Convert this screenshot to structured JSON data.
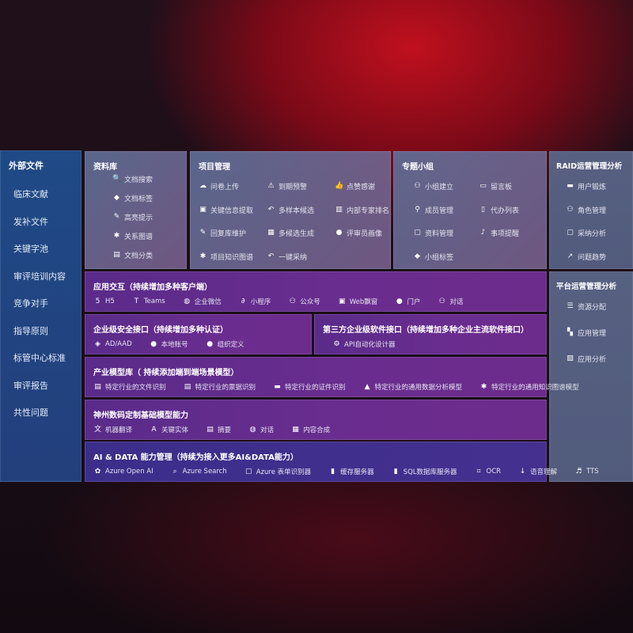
{
  "sidebar": {
    "title": "外部文件",
    "items": [
      "临床文献",
      "发补文件",
      "关键字池",
      "审评培训内容",
      "竞争对手",
      "指导原则",
      "标管中心标准",
      "审评报告",
      "共性问题"
    ]
  },
  "library": {
    "title": "资料库",
    "items": [
      {
        "label": "文档搜索",
        "icon": "doc-search-icon"
      },
      {
        "label": "文档标签",
        "icon": "tag-icon"
      },
      {
        "label": "高亮提示",
        "icon": "pen-icon"
      },
      {
        "label": "关系图谱",
        "icon": "graph-icon"
      },
      {
        "label": "文档分类",
        "icon": "doc-category-icon"
      }
    ]
  },
  "project": {
    "title": "项目管理",
    "items": [
      {
        "label": "问卷上传",
        "icon": "cloud-upload-icon"
      },
      {
        "label": "到期预警",
        "icon": "alarm-icon"
      },
      {
        "label": "点赞感谢",
        "icon": "thumbs-up-icon"
      },
      {
        "label": "关键信息提取",
        "icon": "window-icon"
      },
      {
        "label": "多样本候选",
        "icon": "reply-icon"
      },
      {
        "label": "内部专家排名",
        "icon": "ranking-icon"
      },
      {
        "label": "回复库维护",
        "icon": "edit-icon"
      },
      {
        "label": "多候选生成",
        "icon": "puzzle-icon"
      },
      {
        "label": "评审员画像",
        "icon": "user-icon"
      },
      {
        "label": "项目知识图谱",
        "icon": "graph-icon"
      },
      {
        "label": "一键采纳",
        "icon": "reply-icon"
      }
    ]
  },
  "group": {
    "title": "专题小组",
    "items": [
      {
        "label": "小组建立",
        "icon": "users-icon"
      },
      {
        "label": "留言板",
        "icon": "bbs-icon"
      },
      {
        "label": "成员管理",
        "icon": "user-add-icon"
      },
      {
        "label": "代办列表",
        "icon": "clipboard-icon"
      },
      {
        "label": "资料管理",
        "icon": "folder-icon"
      },
      {
        "label": "事项提醒",
        "icon": "bell-icon"
      },
      {
        "label": "小组标签",
        "icon": "tag-icon"
      }
    ]
  },
  "raid": {
    "title": "RAID运营管理分析",
    "items": [
      {
        "label": "用户锻炼",
        "icon": "id-card-icon"
      },
      {
        "label": "角色管理",
        "icon": "users-icon"
      },
      {
        "label": "采纳分析",
        "icon": "qa-icon"
      },
      {
        "label": "问题趋势",
        "icon": "trend-icon"
      }
    ]
  },
  "platform": {
    "title": "平台运营管理分析",
    "items": [
      {
        "label": "资源分配",
        "icon": "list-icon"
      },
      {
        "label": "应用管理",
        "icon": "apps-icon"
      },
      {
        "label": "应用分析",
        "icon": "analysis-icon"
      }
    ]
  },
  "interaction": {
    "title": "应用交互（持续增加多种客户端）",
    "items": [
      {
        "label": "H5",
        "icon": "html5-icon"
      },
      {
        "label": "Teams",
        "icon": "teams-icon"
      },
      {
        "label": "企业微信",
        "icon": "wecom-icon"
      },
      {
        "label": "小程序",
        "icon": "miniprogram-icon"
      },
      {
        "label": "公众号",
        "icon": "official-account-icon"
      },
      {
        "label": "Web飘窗",
        "icon": "window-icon"
      },
      {
        "label": "门户",
        "icon": "portal-icon"
      },
      {
        "label": "对话",
        "icon": "chat-users-icon"
      }
    ]
  },
  "security": {
    "title": "企业级安全接口（持续增加多种认证）",
    "items": [
      {
        "label": "AD/AAD",
        "icon": "ad-icon"
      },
      {
        "label": "本地账号",
        "icon": "account-icon"
      },
      {
        "label": "组织定义",
        "icon": "org-icon"
      }
    ]
  },
  "thirdparty": {
    "title": "第三方企业级软件接口（持续增加多种企业主流软件接口）",
    "items": [
      {
        "label": "API自动化设计器",
        "icon": "gear-icon"
      }
    ]
  },
  "industry": {
    "title": "产业模型库（ 持续添加端到端场景模型）",
    "items": [
      {
        "label": "特定行业的文件识别",
        "icon": "doc-icon"
      },
      {
        "label": "特定行业的票据识别",
        "icon": "receipt-icon"
      },
      {
        "label": "特定行业的证件识别",
        "icon": "id-card-icon"
      },
      {
        "label": "特定行业的通用数据分析模型",
        "icon": "chart-icon"
      },
      {
        "label": "特定行业的通用知识图谱模型",
        "icon": "graph-icon"
      }
    ]
  },
  "base": {
    "title": "神州数码定制基础模型能力",
    "items": [
      {
        "label": "机器翻译",
        "icon": "translate-icon"
      },
      {
        "label": "关键实体",
        "icon": "entity-icon"
      },
      {
        "label": "摘要",
        "icon": "summary-icon"
      },
      {
        "label": "对话",
        "icon": "chat-icon"
      },
      {
        "label": "内容合成",
        "icon": "puzzle-icon"
      }
    ]
  },
  "ai": {
    "title": "AI & DATA 能力管理（持续为接入更多AI&DATA能力）",
    "items": [
      {
        "label": "Azure Open AI",
        "icon": "openai-icon"
      },
      {
        "label": "Azure Search",
        "icon": "search-icon"
      },
      {
        "label": "Azure 表单识别器",
        "icon": "form-icon"
      },
      {
        "label": "缓存服务器",
        "icon": "cache-icon"
      },
      {
        "label": "SQL数据库服务器",
        "icon": "database-icon"
      },
      {
        "label": "OCR",
        "icon": "ocr-icon"
      },
      {
        "label": "语音理解",
        "icon": "voice-icon"
      },
      {
        "label": "TTS",
        "icon": "tts-icon"
      }
    ]
  }
}
